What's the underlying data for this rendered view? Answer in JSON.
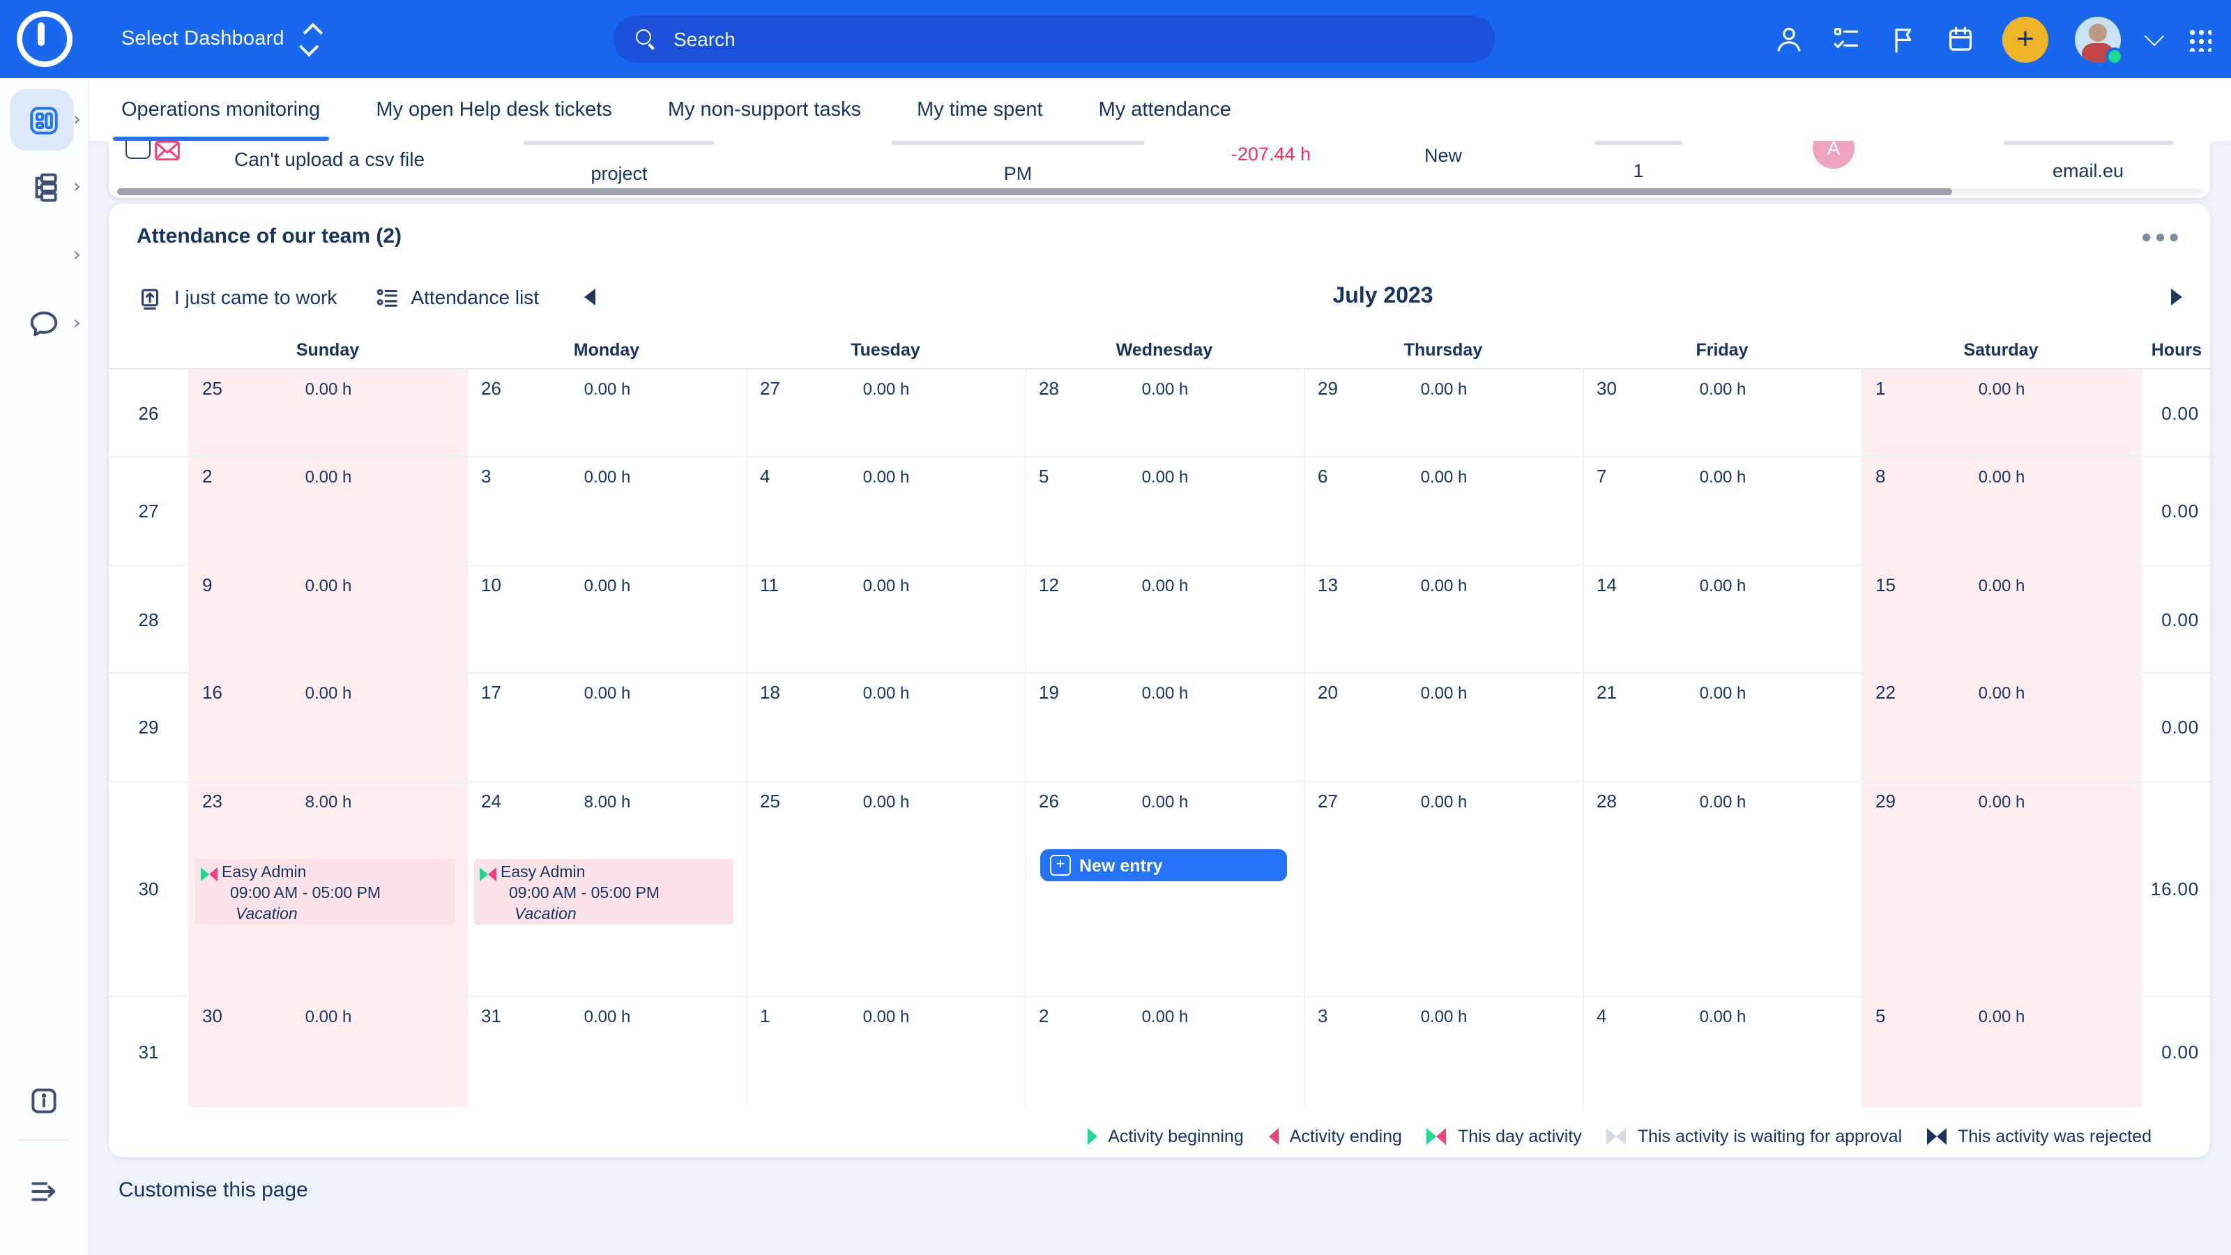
{
  "colors": {
    "topbar": "#1767ef",
    "search_pill": "#1b50d8",
    "accent": "#2273f7",
    "navy": "#17335f",
    "yellow": "#f0b429",
    "green": "#1ddb8f",
    "pink": "#f43f79",
    "red": "#fb2c5c",
    "weekend_bg": "#fdedee",
    "chip_bg": "#fbe2e9",
    "page_bg": "#edf2f8",
    "avatar_pink": "#f0a3c3"
  },
  "topbar": {
    "select_dashboard": "Select Dashboard",
    "search_placeholder": "Search"
  },
  "tabs": [
    {
      "label": "Operations monitoring",
      "active": true
    },
    {
      "label": "My open Help desk tickets",
      "active": false
    },
    {
      "label": "My non-support tasks",
      "active": false
    },
    {
      "label": "My time spent",
      "active": false
    },
    {
      "label": "My attendance",
      "active": false
    }
  ],
  "ticket": {
    "title": "Can't upload a csv file",
    "project": "project",
    "pm": "PM",
    "spent_hours": "-207.44 h",
    "status": "New",
    "count": "1",
    "avatar_initial": "A",
    "email": "email.eu"
  },
  "attendance": {
    "title": "Attendance of our team (2)",
    "menu_icon": "more-dots",
    "toolbar": {
      "came_to_work": "I just came to work",
      "attendance_list": "Attendance list",
      "month_title": "July 2023"
    },
    "weekday_headers": [
      "Sunday",
      "Monday",
      "Tuesday",
      "Wednesday",
      "Thursday",
      "Friday",
      "Saturday",
      "Hours"
    ],
    "event": {
      "name": "Easy Admin",
      "time": "09:00 AM - 05:00 PM",
      "type": "Vacation"
    },
    "new_entry_label": "New entry",
    "weeks": [
      {
        "num": "26",
        "total": "0.00",
        "days": [
          {
            "d": "25",
            "h": "0.00 h"
          },
          {
            "d": "26",
            "h": "0.00 h"
          },
          {
            "d": "27",
            "h": "0.00 h"
          },
          {
            "d": "28",
            "h": "0.00 h"
          },
          {
            "d": "29",
            "h": "0.00 h"
          },
          {
            "d": "30",
            "h": "0.00 h"
          },
          {
            "d": "1",
            "h": "0.00 h"
          }
        ]
      },
      {
        "num": "27",
        "total": "0.00",
        "days": [
          {
            "d": "2",
            "h": "0.00 h"
          },
          {
            "d": "3",
            "h": "0.00 h"
          },
          {
            "d": "4",
            "h": "0.00 h"
          },
          {
            "d": "5",
            "h": "0.00 h"
          },
          {
            "d": "6",
            "h": "0.00 h"
          },
          {
            "d": "7",
            "h": "0.00 h"
          },
          {
            "d": "8",
            "h": "0.00 h"
          }
        ]
      },
      {
        "num": "28",
        "total": "0.00",
        "days": [
          {
            "d": "9",
            "h": "0.00 h"
          },
          {
            "d": "10",
            "h": "0.00 h"
          },
          {
            "d": "11",
            "h": "0.00 h"
          },
          {
            "d": "12",
            "h": "0.00 h"
          },
          {
            "d": "13",
            "h": "0.00 h"
          },
          {
            "d": "14",
            "h": "0.00 h"
          },
          {
            "d": "15",
            "h": "0.00 h"
          }
        ]
      },
      {
        "num": "29",
        "total": "0.00",
        "days": [
          {
            "d": "16",
            "h": "0.00 h"
          },
          {
            "d": "17",
            "h": "0.00 h"
          },
          {
            "d": "18",
            "h": "0.00 h"
          },
          {
            "d": "19",
            "h": "0.00 h"
          },
          {
            "d": "20",
            "h": "0.00 h"
          },
          {
            "d": "21",
            "h": "0.00 h"
          },
          {
            "d": "22",
            "h": "0.00 h"
          }
        ]
      },
      {
        "num": "30",
        "total": "16.00",
        "days": [
          {
            "d": "23",
            "h": "8.00 h",
            "event": true
          },
          {
            "d": "24",
            "h": "8.00 h",
            "event": true
          },
          {
            "d": "25",
            "h": "0.00 h"
          },
          {
            "d": "26",
            "h": "0.00 h",
            "new_entry": true
          },
          {
            "d": "27",
            "h": "0.00 h"
          },
          {
            "d": "28",
            "h": "0.00 h"
          },
          {
            "d": "29",
            "h": "0.00 h"
          }
        ]
      },
      {
        "num": "31",
        "total": "0.00",
        "days": [
          {
            "d": "30",
            "h": "0.00 h"
          },
          {
            "d": "31",
            "h": "0.00 h"
          },
          {
            "d": "1",
            "h": "0.00 h"
          },
          {
            "d": "2",
            "h": "0.00 h"
          },
          {
            "d": "3",
            "h": "0.00 h"
          },
          {
            "d": "4",
            "h": "0.00 h"
          },
          {
            "d": "5",
            "h": "0.00 h"
          }
        ]
      }
    ],
    "legend": [
      {
        "type": "begin",
        "label": "Activity beginning"
      },
      {
        "type": "end",
        "label": "Activity ending"
      },
      {
        "type": "day",
        "label": "This day activity"
      },
      {
        "type": "waiting",
        "label": "This activity is waiting for approval"
      },
      {
        "type": "rejected",
        "label": "This activity was rejected"
      }
    ]
  },
  "footer": {
    "customise": "Customise this page"
  }
}
